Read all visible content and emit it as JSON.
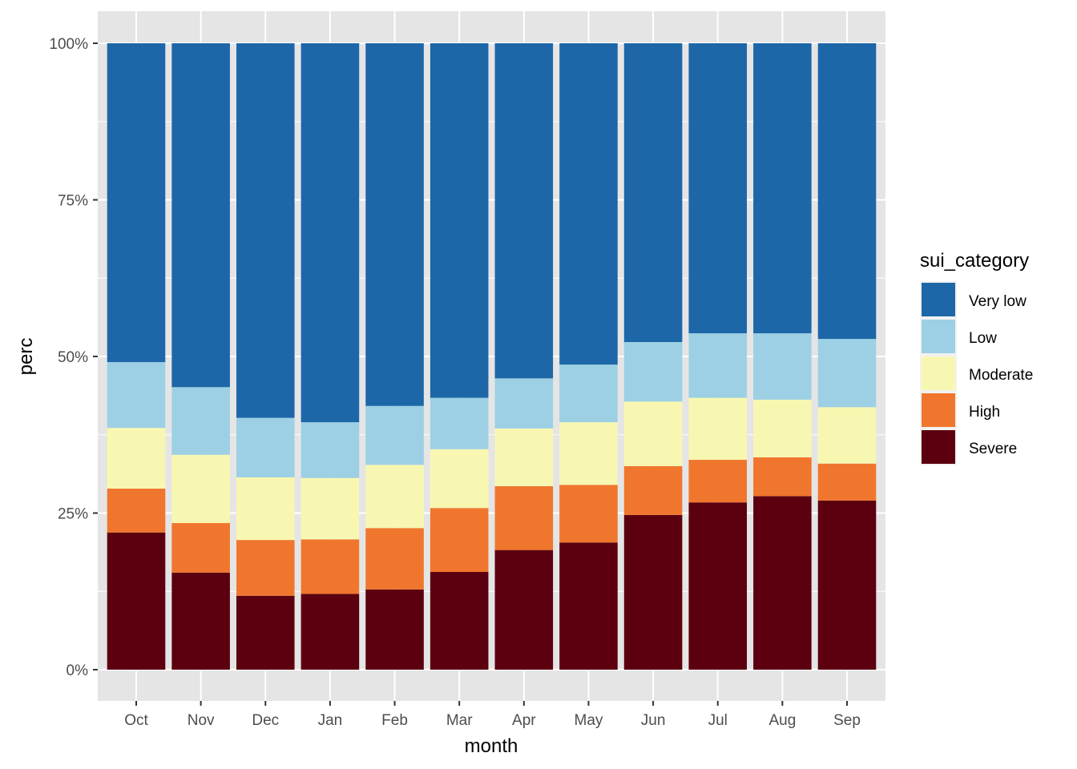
{
  "chart_data": {
    "type": "bar",
    "stacked": "fill",
    "title": "",
    "xlabel": "month",
    "ylabel": "perc",
    "ylim": [
      0,
      1
    ],
    "y_ticks": [
      {
        "value": 0,
        "label": "0%"
      },
      {
        "value": 0.25,
        "label": "25%"
      },
      {
        "value": 0.5,
        "label": "50%"
      },
      {
        "value": 0.75,
        "label": "75%"
      },
      {
        "value": 1,
        "label": "100%"
      }
    ],
    "grid": true,
    "legend": {
      "title": "sui_category",
      "position": "right",
      "order": [
        "Very low",
        "Low",
        "Moderate",
        "High",
        "Severe"
      ]
    },
    "categories": [
      "Oct",
      "Nov",
      "Dec",
      "Jan",
      "Feb",
      "Mar",
      "Apr",
      "May",
      "Jun",
      "Jul",
      "Aug",
      "Sep"
    ],
    "stack_order_bottom_to_top": [
      "Severe",
      "High",
      "Moderate",
      "Low",
      "Very low"
    ],
    "series": [
      {
        "name": "Severe",
        "color": "#5C0010",
        "values": [
          21.9,
          15.5,
          11.8,
          12.1,
          12.8,
          15.6,
          19.1,
          20.3,
          24.7,
          26.7,
          27.7,
          27.0
        ]
      },
      {
        "name": "High",
        "color": "#F0762E",
        "values": [
          7.0,
          7.9,
          8.9,
          8.7,
          9.8,
          10.2,
          10.2,
          9.2,
          7.8,
          6.8,
          6.2,
          5.9
        ]
      },
      {
        "name": "Moderate",
        "color": "#F8F7B2",
        "values": [
          9.7,
          10.9,
          10.0,
          9.8,
          10.1,
          9.4,
          9.2,
          10.0,
          10.3,
          9.9,
          9.2,
          9.0
        ]
      },
      {
        "name": "Low",
        "color": "#9DD0E4",
        "values": [
          10.5,
          10.8,
          9.5,
          8.9,
          9.4,
          8.2,
          8.0,
          9.2,
          9.5,
          10.3,
          10.6,
          10.9
        ]
      },
      {
        "name": "Very low",
        "color": "#1D67A8",
        "values": [
          50.9,
          54.9,
          59.8,
          60.5,
          57.9,
          56.6,
          53.5,
          51.3,
          47.7,
          46.3,
          46.3,
          47.2
        ]
      }
    ],
    "value_units": "percent of month total"
  },
  "colors": {
    "panel_background": "#E5E5E5",
    "gridline": "#FFFFFF",
    "tick_text": "#4D4D4D"
  }
}
